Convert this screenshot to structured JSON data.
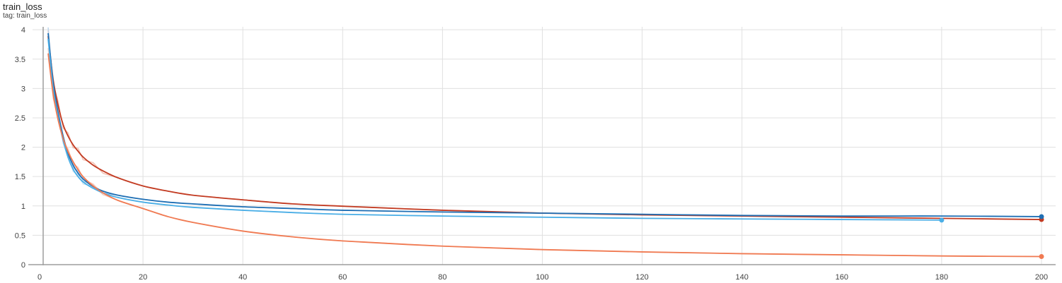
{
  "header": {
    "title": "train_loss",
    "tag_text": "tag: train_loss"
  },
  "chart_data": {
    "type": "line",
    "title": "train_loss",
    "subtitle": "tag: train_loss",
    "xlabel": "",
    "ylabel": "",
    "xlim": [
      0,
      203
    ],
    "ylim": [
      0,
      4.05
    ],
    "x_ticks": [
      0,
      20,
      40,
      60,
      80,
      100,
      120,
      140,
      160,
      180,
      200
    ],
    "y_ticks": [
      0,
      0.5,
      1,
      1.5,
      2,
      2.5,
      3,
      3.5,
      4
    ],
    "y_tick_labels": [
      "0",
      "0.5",
      "1",
      "1.5",
      "2",
      "2.5",
      "3",
      "3.5",
      "4"
    ],
    "grid": true,
    "legend": "none",
    "series": [
      {
        "color": "#c23b22",
        "raw_color": "#f2b8a8",
        "x": [
          1,
          2,
          3,
          4,
          5,
          6,
          7,
          8,
          10,
          12,
          15,
          20,
          25,
          30,
          40,
          50,
          60,
          80,
          100,
          120,
          140,
          160,
          180,
          200
        ],
        "y": [
          3.95,
          3.2,
          2.75,
          2.42,
          2.22,
          2.07,
          1.96,
          1.86,
          1.72,
          1.62,
          1.5,
          1.36,
          1.27,
          1.2,
          1.12,
          1.05,
          1.01,
          0.94,
          0.89,
          0.86,
          0.84,
          0.82,
          0.8,
          0.78
        ]
      },
      {
        "color": "#1f6fb4",
        "raw_color": "#b7d2ea",
        "x": [
          1,
          2,
          3,
          4,
          5,
          6,
          7,
          8,
          10,
          12,
          15,
          20,
          25,
          30,
          40,
          50,
          60,
          80,
          100,
          120,
          140,
          160,
          180,
          200
        ],
        "y": [
          4.0,
          3.15,
          2.62,
          2.22,
          1.92,
          1.72,
          1.58,
          1.48,
          1.35,
          1.27,
          1.2,
          1.13,
          1.08,
          1.05,
          1.0,
          0.97,
          0.94,
          0.91,
          0.89,
          0.87,
          0.85,
          0.84,
          0.84,
          0.83
        ]
      },
      {
        "color": "#4aaee6",
        "raw_color": "#c5e3f5",
        "x": [
          1,
          2,
          3,
          4,
          5,
          6,
          7,
          8,
          10,
          12,
          15,
          20,
          25,
          30,
          40,
          50,
          60,
          80,
          100,
          120,
          140,
          160,
          180
        ],
        "y": [
          3.9,
          3.05,
          2.55,
          2.15,
          1.85,
          1.65,
          1.52,
          1.43,
          1.32,
          1.24,
          1.16,
          1.08,
          1.03,
          0.99,
          0.94,
          0.9,
          0.87,
          0.84,
          0.82,
          0.8,
          0.79,
          0.78,
          0.77
        ]
      },
      {
        "color": "#f07a52",
        "raw_color": "#f8c9b8",
        "x": [
          1,
          2,
          3,
          4,
          5,
          6,
          7,
          8,
          10,
          12,
          15,
          20,
          25,
          30,
          40,
          50,
          60,
          80,
          100,
          120,
          140,
          160,
          180,
          200
        ],
        "y": [
          3.65,
          2.95,
          2.5,
          2.18,
          1.95,
          1.78,
          1.64,
          1.52,
          1.36,
          1.24,
          1.11,
          0.97,
          0.83,
          0.73,
          0.58,
          0.48,
          0.41,
          0.32,
          0.26,
          0.22,
          0.19,
          0.17,
          0.15,
          0.14
        ]
      }
    ]
  }
}
